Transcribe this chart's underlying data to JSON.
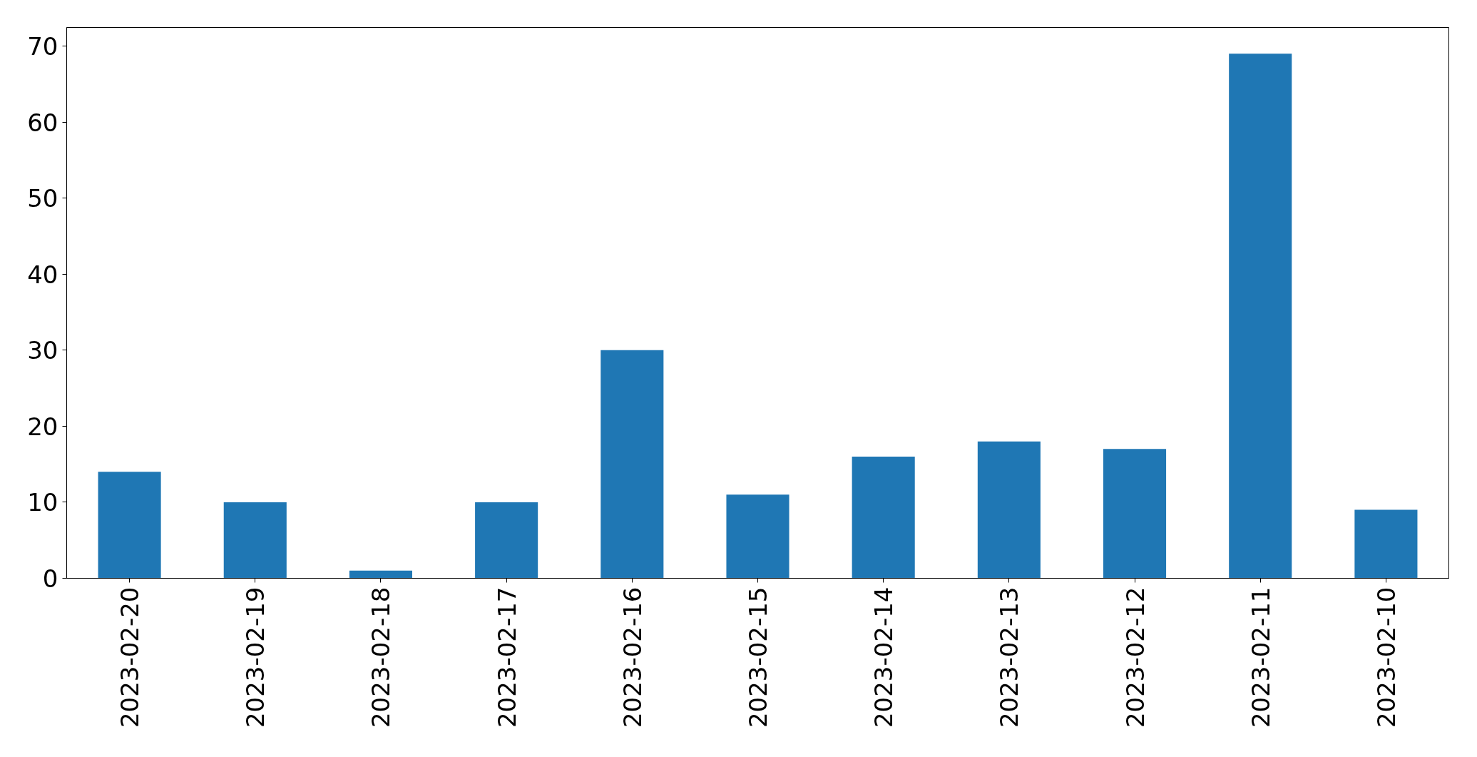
{
  "chart_data": {
    "type": "bar",
    "categories": [
      "2023-02-20",
      "2023-02-19",
      "2023-02-18",
      "2023-02-17",
      "2023-02-16",
      "2023-02-15",
      "2023-02-14",
      "2023-02-13",
      "2023-02-12",
      "2023-02-11",
      "2023-02-10"
    ],
    "values": [
      14,
      10,
      1,
      10,
      30,
      11,
      16,
      18,
      17,
      69,
      9
    ],
    "color": "#1f77b4",
    "ylim": [
      0,
      72.45
    ],
    "yticks": [
      0,
      10,
      20,
      30,
      40,
      50,
      60,
      70
    ],
    "grid": false
  }
}
